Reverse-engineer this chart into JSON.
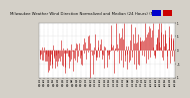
{
  "title": "Milwaukee Weather Wind Direction Normalized and Median (24 Hours) (New)",
  "background_color": "#d4d0c8",
  "plot_bg_color": "#ffffff",
  "bar_color": "#cc0000",
  "median_color": "#0000cc",
  "grid_color": "#bbbbbb",
  "n_points": 200,
  "y_min": -1.0,
  "y_max": 1.0,
  "yticks": [
    -1.0,
    -0.5,
    0.0,
    0.5,
    1.0
  ],
  "ytick_labels": [
    "-1",
    "-.5",
    "0",
    ".5",
    "1"
  ],
  "title_fontsize": 2.8,
  "tick_fontsize": 2.0,
  "seed": 42,
  "legend_blue": "#0000cc",
  "legend_red": "#cc0000"
}
